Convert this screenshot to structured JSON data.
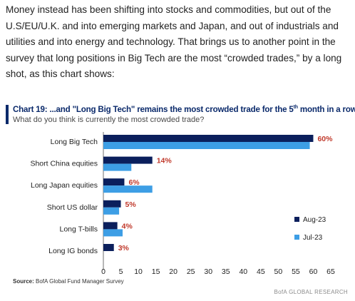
{
  "article": {
    "paragraph": "Money instead has been shifting into stocks and commodities, but out of the U.S/EU/U.K. and into emerging markets and Japan, and out of industrials and utilities and into energy and technology. That brings us to another point in the survey that long positions in Big Tech are the most “crowded trades,” by a long shot, as this chart shows:"
  },
  "chart_data": {
    "type": "bar",
    "orientation": "horizontal",
    "title_prefix": "Chart 19: ...and \"Long Big Tech\" remains the most crowded trade for the 5",
    "title_sup": "th",
    "title_suffix": " month in a row",
    "subtitle": "What do you think is currently the most crowded trade?",
    "categories": [
      "Long Big Tech",
      "Short China equities",
      "Long Japan equities",
      "Short US dollar",
      "Long T-bills",
      "Long IG bonds"
    ],
    "series": [
      {
        "name": "Aug-23",
        "color": "#0b1f5c",
        "values": [
          60,
          14,
          6,
          5,
          4,
          3
        ]
      },
      {
        "name": "Jul-23",
        "color": "#3d9ee5",
        "values": [
          59,
          8,
          14,
          4.5,
          5.5,
          0
        ]
      }
    ],
    "data_labels": [
      "60%",
      "14%",
      "6%",
      "5%",
      "4%",
      "3%"
    ],
    "data_label_color": "#c0392b",
    "x_ticks": [
      0,
      5,
      10,
      15,
      20,
      25,
      30,
      35,
      40,
      45,
      50,
      55,
      60,
      65
    ],
    "xlim": [
      0,
      65
    ],
    "grid": false,
    "legend_position": "right",
    "source_label": "Source:",
    "source_text": " BofA Global Fund Manager Survey",
    "brand": "BofA GLOBAL RESEARCH"
  }
}
